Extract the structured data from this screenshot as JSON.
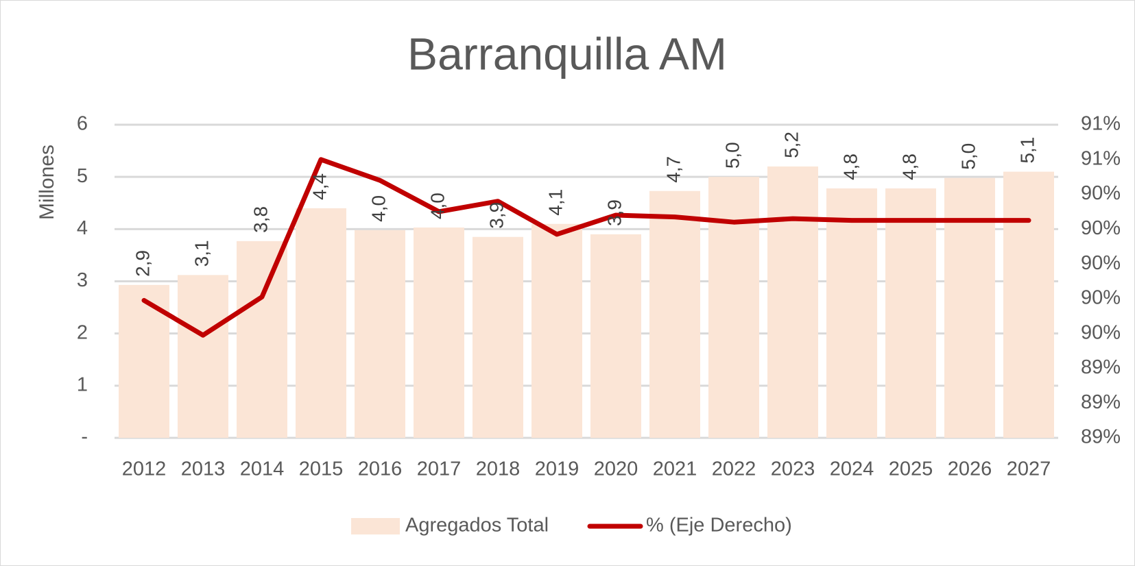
{
  "chart_data": {
    "type": "bar",
    "title": "Barranquilla AM",
    "ylabel": "Millones",
    "categories": [
      "2012",
      "2013",
      "2014",
      "2015",
      "2016",
      "2017",
      "2018",
      "2019",
      "2020",
      "2021",
      "2022",
      "2023",
      "2024",
      "2025",
      "2026",
      "2027"
    ],
    "series": [
      {
        "name": "Agregados Total",
        "type": "bar",
        "color": "#fbe5d6",
        "values": [
          2.93,
          3.12,
          3.77,
          4.4,
          3.98,
          4.03,
          3.85,
          4.1,
          3.9,
          4.73,
          5.0,
          5.2,
          4.78,
          4.78,
          4.98,
          5.1
        ],
        "value_labels": [
          "2,9",
          "3,1",
          "3,8",
          "4,4",
          "4,0",
          "4,0",
          "3,9",
          "4,1",
          "3,9",
          "4,7",
          "5,0",
          "5,2",
          "4,8",
          "4,8",
          "5,0",
          "5,1"
        ]
      },
      {
        "name": "% (Eje Derecho)",
        "type": "line",
        "axis": "y2",
        "color": "#c00000",
        "values": [
          89.79,
          89.59,
          89.81,
          90.6,
          90.48,
          90.3,
          90.36,
          90.17,
          90.28,
          90.27,
          90.24,
          90.26,
          90.25,
          90.25,
          90.25,
          90.25
        ]
      }
    ],
    "ylim": [
      0,
      6
    ],
    "yticks": [
      {
        "value": 0,
        "label": "-"
      },
      1,
      2,
      3,
      4,
      5,
      6
    ],
    "y2lim": [
      89.0,
      90.8
    ],
    "y2ticks": [
      {
        "value": 89.0,
        "label": "89%"
      },
      {
        "value": 89.2,
        "label": "89%"
      },
      {
        "value": 89.4,
        "label": "89%"
      },
      {
        "value": 89.6,
        "label": "90%"
      },
      {
        "value": 89.8,
        "label": "90%"
      },
      {
        "value": 90.0,
        "label": "90%"
      },
      {
        "value": 90.2,
        "label": "90%"
      },
      {
        "value": 90.4,
        "label": "90%"
      },
      {
        "value": 90.6,
        "label": "91%"
      },
      {
        "value": 90.8,
        "label": "91%"
      }
    ],
    "grid": true,
    "legend": "bottom"
  }
}
